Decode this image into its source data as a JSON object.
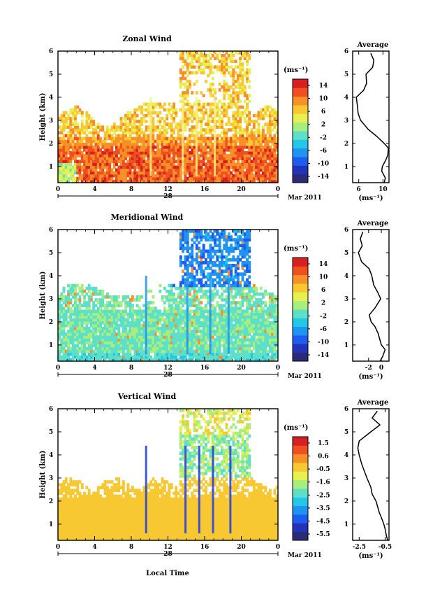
{
  "panels": [
    {
      "title": "Zonal Wind",
      "ylabel": "Height (km)",
      "unit_label": "(ms⁻¹)",
      "colorbar_ticks": [
        "14",
        "10",
        "6",
        "2",
        "-2",
        "-6",
        "-10",
        "-14"
      ],
      "profile_title": "Average",
      "profile_xticks": [
        "6",
        "10"
      ],
      "profile_unit": "(ms⁻¹)"
    },
    {
      "title": "Meridional Wind",
      "ylabel": "Height (km)",
      "unit_label": "(ms⁻¹)",
      "colorbar_ticks": [
        "14",
        "10",
        "6",
        "2",
        "-2",
        "-6",
        "-10",
        "-14"
      ],
      "profile_title": "Average",
      "profile_xticks": [
        "-2",
        "0"
      ],
      "profile_unit": "(ms⁻¹)"
    },
    {
      "title": "Vertical Wind",
      "ylabel": "Height (km)",
      "unit_label": "(ms⁻¹)",
      "colorbar_ticks": [
        "1.5",
        "0.6",
        "-0.5",
        "-1.6",
        "-2.5",
        "-3.5",
        "-4.5",
        "-5.5"
      ],
      "profile_title": "Average",
      "profile_xticks": [
        "-2.5",
        "-0.5"
      ],
      "profile_unit": "(ms⁻¹)"
    }
  ],
  "xticks": [
    "0",
    "4",
    "8",
    "12",
    "16",
    "20",
    "0"
  ],
  "yticks": [
    "1",
    "2",
    "3",
    "4",
    "5",
    "6"
  ],
  "date_day": "28",
  "date_label": "Mar 2011",
  "xlabel": "Local Time",
  "chart_data": [
    {
      "type": "heatmap",
      "title": "Zonal Wind",
      "xlabel": "Local Time",
      "ylabel": "Height (km)",
      "xlim": [
        0,
        24
      ],
      "ylim": [
        0.3,
        6
      ],
      "colorbar_range": [
        -14,
        14
      ],
      "grid": false,
      "description_of_field": "mostly positive (eastward) winds, strongest 10-16 below 2 km",
      "profile": {
        "title": "Average",
        "xlim": [
          5,
          11
        ],
        "heights": [
          0.3,
          0.5,
          0.8,
          1.0,
          1.3,
          1.5,
          1.8,
          2.0,
          2.3,
          2.6,
          3.0,
          3.3,
          3.6,
          4.0,
          4.3,
          4.6,
          5.0,
          5.3,
          5.6,
          5.9
        ],
        "values": [
          10.2,
          10.4,
          9.8,
          9.9,
          10.5,
          10.8,
          10.9,
          10.2,
          9.0,
          7.6,
          6.3,
          5.9,
          5.8,
          5.6,
          6.8,
          7.3,
          7.2,
          8.3,
          8.5,
          8.0
        ]
      }
    },
    {
      "type": "heatmap",
      "title": "Meridional Wind",
      "xlabel": "Local Time",
      "ylabel": "Height (km)",
      "xlim": [
        0,
        24
      ],
      "ylim": [
        0.3,
        6
      ],
      "colorbar_range": [
        -14,
        14
      ],
      "grid": false,
      "profile": {
        "title": "Average",
        "xlim": [
          -4.5,
          1.2
        ],
        "heights": [
          0.3,
          0.5,
          0.8,
          1.0,
          1.3,
          1.5,
          1.8,
          2.0,
          2.3,
          2.6,
          3.0,
          3.3,
          3.6,
          4.0,
          4.3,
          4.6,
          5.0,
          5.3,
          5.6,
          5.9
        ],
        "values": [
          -0.2,
          0.2,
          0.6,
          0.0,
          -0.3,
          -0.5,
          -1.0,
          -1.6,
          -1.9,
          -1.0,
          -0.1,
          -0.6,
          -1.2,
          -1.5,
          -1.9,
          -3.1,
          -3.6,
          -3.0,
          -3.3,
          -2.9
        ]
      }
    },
    {
      "type": "heatmap",
      "title": "Vertical Wind",
      "xlabel": "Local Time",
      "ylabel": "Height (km)",
      "xlim": [
        0,
        24
      ],
      "ylim": [
        0.3,
        6
      ],
      "colorbar_range": [
        -5.5,
        1.5
      ],
      "grid": false,
      "profile": {
        "title": "Average",
        "xlim": [
          -3.0,
          -0.2
        ],
        "heights": [
          0.3,
          0.5,
          0.8,
          1.0,
          1.3,
          1.5,
          1.8,
          2.0,
          2.3,
          2.6,
          3.0,
          3.3,
          3.6,
          4.0,
          4.3,
          4.6,
          5.0,
          5.3,
          5.6,
          5.9
        ],
        "values": [
          -0.3,
          -0.4,
          -0.5,
          -0.6,
          -0.8,
          -0.95,
          -1.1,
          -1.2,
          -1.5,
          -1.6,
          -1.9,
          -2.1,
          -2.3,
          -2.5,
          -2.6,
          -2.5,
          -1.6,
          -0.9,
          -1.5,
          -1.1
        ]
      }
    }
  ]
}
